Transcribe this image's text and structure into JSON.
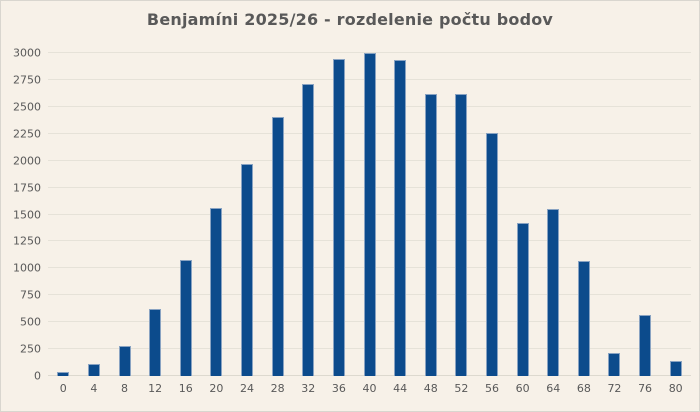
{
  "chart_data": {
    "type": "bar",
    "title": "Benjamíni 2025/26 - rozdelenie počtu bodov",
    "categories": [
      "0",
      "4",
      "8",
      "12",
      "16",
      "20",
      "24",
      "28",
      "32",
      "36",
      "40",
      "44",
      "48",
      "52",
      "56",
      "60",
      "64",
      "68",
      "72",
      "76",
      "80"
    ],
    "values": [
      40,
      115,
      280,
      620,
      1080,
      1560,
      1970,
      2410,
      2710,
      2945,
      3000,
      2935,
      2620,
      2615,
      2260,
      1420,
      1550,
      1065,
      215,
      570,
      140
    ],
    "xlabel": "",
    "ylabel": "",
    "ylim": [
      0,
      3000
    ],
    "yticks": [
      0,
      250,
      500,
      750,
      1000,
      1250,
      1500,
      1750,
      2000,
      2250,
      2500,
      2750,
      3000
    ],
    "grid": true,
    "legend": "none",
    "colors": {
      "background": "#f7f1e8",
      "bar_fill": "#0c4b8c",
      "bar_edge": "#89a3c2",
      "gridline": "#e6e2d8",
      "title_text": "#595959",
      "tick_text": "#595959"
    }
  }
}
